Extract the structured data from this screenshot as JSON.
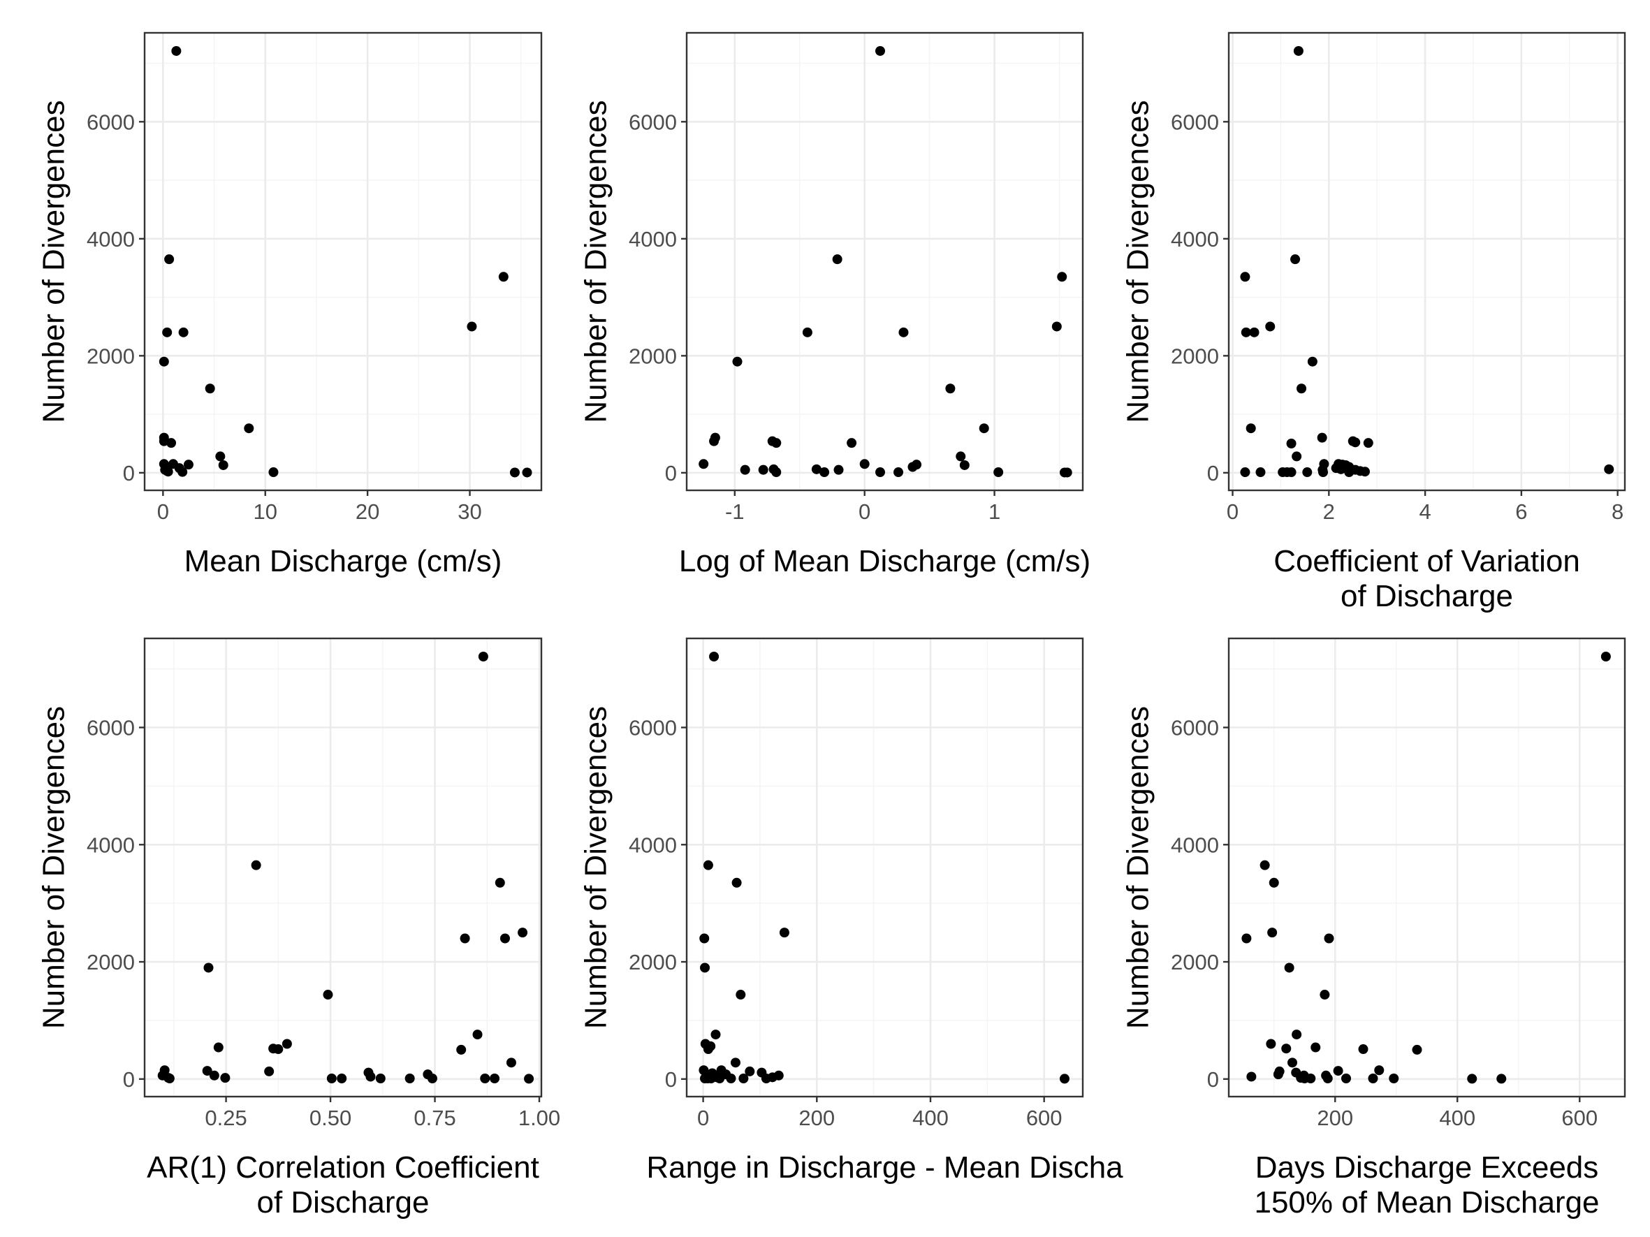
{
  "chart_data": [
    {
      "type": "scatter",
      "xlabel": "Mean Discharge (cm/s)",
      "ylabel": "Number of Divergences",
      "xlim": [
        -1.8,
        37.0
      ],
      "ylim": [
        -300,
        7520
      ],
      "xticks": [
        0,
        10,
        20,
        30
      ],
      "yticks": [
        0,
        2000,
        4000,
        6000
      ],
      "x_tick_labels": [
        "0",
        "10",
        "20",
        "30"
      ],
      "y_tick_labels": [
        "0",
        "2000",
        "4000",
        "6000"
      ],
      "grid": true,
      "points": [
        {
          "x": 1.3,
          "y": 7210
        },
        {
          "x": 0.6,
          "y": 3650
        },
        {
          "x": 33.3,
          "y": 3350
        },
        {
          "x": 30.2,
          "y": 2500
        },
        {
          "x": 0.4,
          "y": 2400
        },
        {
          "x": 2.0,
          "y": 2400
        },
        {
          "x": 0.1,
          "y": 1900
        },
        {
          "x": 4.6,
          "y": 1440
        },
        {
          "x": 8.4,
          "y": 760
        },
        {
          "x": 0.1,
          "y": 600
        },
        {
          "x": 0.1,
          "y": 540
        },
        {
          "x": 0.8,
          "y": 510
        },
        {
          "x": 5.6,
          "y": 280
        },
        {
          "x": 0.1,
          "y": 150
        },
        {
          "x": 1.0,
          "y": 150
        },
        {
          "x": 2.5,
          "y": 140
        },
        {
          "x": 5.9,
          "y": 130
        },
        {
          "x": 0.3,
          "y": 100
        },
        {
          "x": 1.6,
          "y": 80
        },
        {
          "x": 0.2,
          "y": 50
        },
        {
          "x": 0.4,
          "y": 30
        },
        {
          "x": 0.5,
          "y": 20
        },
        {
          "x": 1.9,
          "y": 15
        },
        {
          "x": 10.8,
          "y": 10
        },
        {
          "x": 34.4,
          "y": 5
        },
        {
          "x": 35.6,
          "y": 5
        }
      ]
    },
    {
      "type": "scatter",
      "xlabel": "Log of Mean Discharge (cm/s)",
      "ylabel": "Number of Divergences",
      "xlim": [
        -1.37,
        1.68
      ],
      "ylim": [
        -300,
        7520
      ],
      "xticks": [
        -1,
        0,
        1
      ],
      "yticks": [
        0,
        2000,
        4000,
        6000
      ],
      "x_tick_labels": [
        "-1",
        "0",
        "1"
      ],
      "y_tick_labels": [
        "0",
        "2000",
        "4000",
        "6000"
      ],
      "grid": true,
      "points": [
        {
          "x": 0.12,
          "y": 7210
        },
        {
          "x": -0.21,
          "y": 3650
        },
        {
          "x": 1.52,
          "y": 3350
        },
        {
          "x": 1.48,
          "y": 2500
        },
        {
          "x": -0.44,
          "y": 2400
        },
        {
          "x": 0.3,
          "y": 2400
        },
        {
          "x": -0.98,
          "y": 1900
        },
        {
          "x": 0.66,
          "y": 1440
        },
        {
          "x": 0.92,
          "y": 760
        },
        {
          "x": -1.15,
          "y": 600
        },
        {
          "x": -1.16,
          "y": 540
        },
        {
          "x": -0.71,
          "y": 540
        },
        {
          "x": -0.68,
          "y": 510
        },
        {
          "x": -0.1,
          "y": 510
        },
        {
          "x": 0.74,
          "y": 280
        },
        {
          "x": -1.24,
          "y": 150
        },
        {
          "x": 0.0,
          "y": 150
        },
        {
          "x": 0.4,
          "y": 140
        },
        {
          "x": 0.77,
          "y": 130
        },
        {
          "x": 0.37,
          "y": 100
        },
        {
          "x": -0.37,
          "y": 60
        },
        {
          "x": -0.92,
          "y": 50
        },
        {
          "x": -0.78,
          "y": 50
        },
        {
          "x": -0.2,
          "y": 50
        },
        {
          "x": -0.7,
          "y": 60
        },
        {
          "x": -0.68,
          "y": 10
        },
        {
          "x": -0.31,
          "y": 10
        },
        {
          "x": 0.12,
          "y": 10
        },
        {
          "x": 0.26,
          "y": 10
        },
        {
          "x": 1.03,
          "y": 10
        },
        {
          "x": 1.54,
          "y": 5
        },
        {
          "x": 1.56,
          "y": 5
        }
      ]
    },
    {
      "type": "scatter",
      "xlabel": "Coefficient of Variation\nof Discharge",
      "ylabel": "Number of Divergences",
      "xlim": [
        -0.08,
        8.15
      ],
      "ylim": [
        -300,
        7520
      ],
      "xticks": [
        0,
        2,
        4,
        6,
        8
      ],
      "yticks": [
        0,
        2000,
        4000,
        6000
      ],
      "x_tick_labels": [
        "0",
        "2",
        "4",
        "6",
        "8"
      ],
      "y_tick_labels": [
        "0",
        "2000",
        "4000",
        "6000"
      ],
      "grid": true,
      "points": [
        {
          "x": 1.37,
          "y": 7210
        },
        {
          "x": 1.3,
          "y": 3650
        },
        {
          "x": 0.26,
          "y": 3350
        },
        {
          "x": 0.78,
          "y": 2500
        },
        {
          "x": 0.28,
          "y": 2400
        },
        {
          "x": 0.45,
          "y": 2400
        },
        {
          "x": 1.66,
          "y": 1900
        },
        {
          "x": 1.43,
          "y": 1440
        },
        {
          "x": 0.38,
          "y": 760
        },
        {
          "x": 1.86,
          "y": 600
        },
        {
          "x": 2.5,
          "y": 540
        },
        {
          "x": 2.55,
          "y": 520
        },
        {
          "x": 2.82,
          "y": 510
        },
        {
          "x": 1.22,
          "y": 500
        },
        {
          "x": 1.33,
          "y": 280
        },
        {
          "x": 1.9,
          "y": 150
        },
        {
          "x": 2.2,
          "y": 150
        },
        {
          "x": 2.28,
          "y": 140
        },
        {
          "x": 2.35,
          "y": 130
        },
        {
          "x": 2.42,
          "y": 100
        },
        {
          "x": 2.15,
          "y": 80
        },
        {
          "x": 2.25,
          "y": 60
        },
        {
          "x": 2.55,
          "y": 50
        },
        {
          "x": 7.82,
          "y": 60
        },
        {
          "x": 1.87,
          "y": 50
        },
        {
          "x": 2.65,
          "y": 30
        },
        {
          "x": 2.75,
          "y": 20
        },
        {
          "x": 0.26,
          "y": 10
        },
        {
          "x": 0.58,
          "y": 10
        },
        {
          "x": 1.04,
          "y": 10
        },
        {
          "x": 1.13,
          "y": 10
        },
        {
          "x": 1.22,
          "y": 10
        },
        {
          "x": 1.55,
          "y": 10
        },
        {
          "x": 1.88,
          "y": 10
        },
        {
          "x": 2.42,
          "y": 10
        }
      ]
    },
    {
      "type": "scatter",
      "xlabel": "AR(1) Correlation Coefficient\nof Discharge",
      "ylabel": "Number of Divergences",
      "xlim": [
        0.055,
        1.005
      ],
      "ylim": [
        -300,
        7520
      ],
      "xticks": [
        0.25,
        0.5,
        0.75,
        1.0
      ],
      "yticks": [
        0,
        2000,
        4000,
        6000
      ],
      "x_tick_labels": [
        "0.25",
        "0.50",
        "0.75",
        "1.00"
      ],
      "y_tick_labels": [
        "0",
        "2000",
        "4000",
        "6000"
      ],
      "grid": true,
      "points": [
        {
          "x": 0.866,
          "y": 7210
        },
        {
          "x": 0.322,
          "y": 3650
        },
        {
          "x": 0.906,
          "y": 3350
        },
        {
          "x": 0.96,
          "y": 2500
        },
        {
          "x": 0.822,
          "y": 2400
        },
        {
          "x": 0.918,
          "y": 2400
        },
        {
          "x": 0.208,
          "y": 1900
        },
        {
          "x": 0.494,
          "y": 1440
        },
        {
          "x": 0.852,
          "y": 760
        },
        {
          "x": 0.396,
          "y": 600
        },
        {
          "x": 0.232,
          "y": 540
        },
        {
          "x": 0.363,
          "y": 520
        },
        {
          "x": 0.375,
          "y": 510
        },
        {
          "x": 0.813,
          "y": 500
        },
        {
          "x": 0.933,
          "y": 280
        },
        {
          "x": 0.103,
          "y": 150
        },
        {
          "x": 0.205,
          "y": 140
        },
        {
          "x": 0.353,
          "y": 130
        },
        {
          "x": 0.591,
          "y": 110
        },
        {
          "x": 0.733,
          "y": 80
        },
        {
          "x": 0.098,
          "y": 60
        },
        {
          "x": 0.222,
          "y": 60
        },
        {
          "x": 0.596,
          "y": 40
        },
        {
          "x": 0.112,
          "y": 20
        },
        {
          "x": 0.248,
          "y": 20
        },
        {
          "x": 0.115,
          "y": 10
        },
        {
          "x": 0.503,
          "y": 10
        },
        {
          "x": 0.527,
          "y": 10
        },
        {
          "x": 0.62,
          "y": 10
        },
        {
          "x": 0.69,
          "y": 10
        },
        {
          "x": 0.744,
          "y": 10
        },
        {
          "x": 0.87,
          "y": 10
        },
        {
          "x": 0.893,
          "y": 10
        },
        {
          "x": 0.975,
          "y": 5
        }
      ]
    },
    {
      "type": "scatter",
      "xlabel": "Range in Discharge - Mean Discha",
      "ylabel": "Number of Divergences",
      "xlim": [
        -29,
        668
      ],
      "ylim": [
        -300,
        7520
      ],
      "xticks": [
        0,
        200,
        400,
        600
      ],
      "yticks": [
        0,
        2000,
        4000,
        6000
      ],
      "x_tick_labels": [
        "0",
        "200",
        "400",
        "600"
      ],
      "y_tick_labels": [
        "0",
        "2000",
        "4000",
        "6000"
      ],
      "grid": true,
      "points": [
        {
          "x": 19,
          "y": 7210
        },
        {
          "x": 9,
          "y": 3650
        },
        {
          "x": 59,
          "y": 3350
        },
        {
          "x": 143,
          "y": 2500
        },
        {
          "x": 2,
          "y": 2400
        },
        {
          "x": 3,
          "y": 1900
        },
        {
          "x": 66,
          "y": 1440
        },
        {
          "x": 22,
          "y": 760
        },
        {
          "x": 4,
          "y": 600
        },
        {
          "x": 13,
          "y": 560
        },
        {
          "x": 9,
          "y": 510
        },
        {
          "x": 57,
          "y": 280
        },
        {
          "x": 1,
          "y": 150
        },
        {
          "x": 32,
          "y": 150
        },
        {
          "x": 82,
          "y": 130
        },
        {
          "x": 103,
          "y": 110
        },
        {
          "x": 16,
          "y": 100
        },
        {
          "x": 40,
          "y": 80
        },
        {
          "x": 133,
          "y": 60
        },
        {
          "x": 6,
          "y": 40
        },
        {
          "x": 24,
          "y": 30
        },
        {
          "x": 122,
          "y": 30
        },
        {
          "x": 3,
          "y": 10
        },
        {
          "x": 8,
          "y": 10
        },
        {
          "x": 14,
          "y": 10
        },
        {
          "x": 29,
          "y": 10
        },
        {
          "x": 49,
          "y": 10
        },
        {
          "x": 71,
          "y": 10
        },
        {
          "x": 111,
          "y": 10
        },
        {
          "x": 636,
          "y": 5
        }
      ]
    },
    {
      "type": "scatter",
      "xlabel": "Days Discharge Exceeds\n150% of Mean Discharge",
      "ylabel": "Number of Divergences",
      "xlim": [
        26,
        674
      ],
      "ylim": [
        -300,
        7520
      ],
      "xticks": [
        200,
        400,
        600
      ],
      "yticks": [
        0,
        2000,
        4000,
        6000
      ],
      "x_tick_labels": [
        "200",
        "400",
        "600"
      ],
      "y_tick_labels": [
        "0",
        "2000",
        "4000",
        "6000"
      ],
      "grid": true,
      "points": [
        {
          "x": 643,
          "y": 7210
        },
        {
          "x": 85,
          "y": 3650
        },
        {
          "x": 100,
          "y": 3350
        },
        {
          "x": 97,
          "y": 2500
        },
        {
          "x": 55,
          "y": 2400
        },
        {
          "x": 190,
          "y": 2400
        },
        {
          "x": 125,
          "y": 1900
        },
        {
          "x": 183,
          "y": 1440
        },
        {
          "x": 137,
          "y": 760
        },
        {
          "x": 95,
          "y": 600
        },
        {
          "x": 168,
          "y": 540
        },
        {
          "x": 120,
          "y": 520
        },
        {
          "x": 246,
          "y": 510
        },
        {
          "x": 334,
          "y": 500
        },
        {
          "x": 130,
          "y": 280
        },
        {
          "x": 272,
          "y": 150
        },
        {
          "x": 205,
          "y": 140
        },
        {
          "x": 109,
          "y": 130
        },
        {
          "x": 136,
          "y": 110
        },
        {
          "x": 107,
          "y": 80
        },
        {
          "x": 149,
          "y": 60
        },
        {
          "x": 185,
          "y": 60
        },
        {
          "x": 63,
          "y": 40
        },
        {
          "x": 144,
          "y": 20
        },
        {
          "x": 150,
          "y": 10
        },
        {
          "x": 160,
          "y": 10
        },
        {
          "x": 188,
          "y": 10
        },
        {
          "x": 218,
          "y": 10
        },
        {
          "x": 262,
          "y": 10
        },
        {
          "x": 296,
          "y": 10
        },
        {
          "x": 424,
          "y": 5
        },
        {
          "x": 472,
          "y": 5
        }
      ]
    }
  ]
}
